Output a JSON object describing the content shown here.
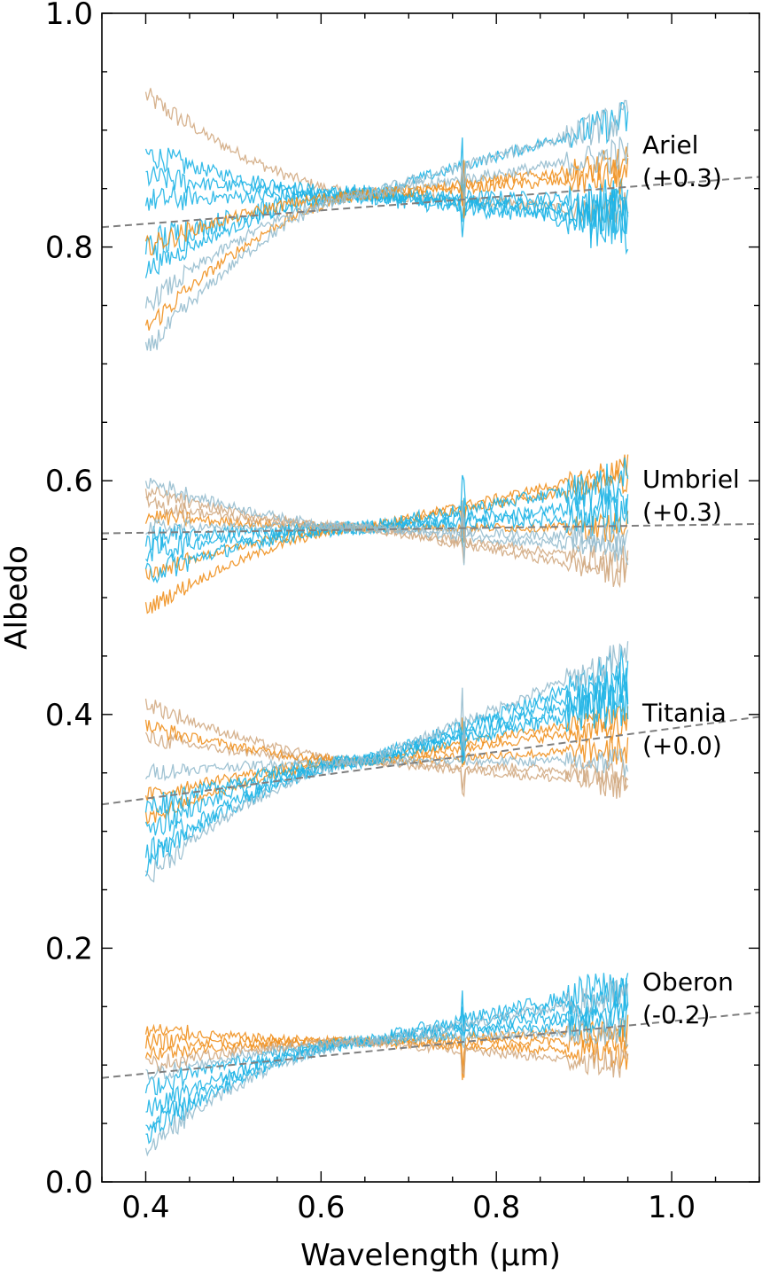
{
  "chart_data": {
    "type": "line",
    "title": "",
    "xlabel": "Wavelength (μm)",
    "ylabel": "Albedo",
    "xlim": [
      0.35,
      1.1
    ],
    "ylim": [
      0.0,
      1.0
    ],
    "x_ticks": [
      0.4,
      0.6,
      0.8,
      1.0
    ],
    "x_tick_labels": [
      "0.4",
      "0.6",
      "0.8",
      "1.0"
    ],
    "y_ticks": [
      0.0,
      0.2,
      0.4,
      0.6,
      0.8,
      1.0
    ],
    "y_tick_labels": [
      "0.0",
      "0.2",
      "0.4",
      "0.6",
      "0.8",
      "1.0"
    ],
    "wavelength_range": [
      0.4,
      0.95
    ],
    "colors": {
      "orange": "#f0901e",
      "cyan": "#1eb4e6",
      "tan": "#d2aa82",
      "gray_blue": "#96bcce",
      "fit_line": "#7f7f7f"
    },
    "groups": [
      {
        "name": "Ariel",
        "offset_label": "(+0.3)",
        "anchor": 0.845,
        "fit_line": {
          "x": [
            0.35,
            1.1
          ],
          "y": [
            0.817,
            0.86
          ]
        },
        "spectra": [
          {
            "color": "tan",
            "start": 0.93,
            "end": 0.83,
            "noise": 0.01
          },
          {
            "color": "cyan",
            "start": 0.88,
            "end": 0.82,
            "noise": 0.012
          },
          {
            "color": "cyan",
            "start": 0.86,
            "end": 0.83,
            "noise": 0.012
          },
          {
            "color": "cyan",
            "start": 0.84,
            "end": 0.84,
            "noise": 0.012
          },
          {
            "color": "cyan",
            "start": 0.8,
            "end": 0.82,
            "noise": 0.018
          },
          {
            "color": "cyan",
            "start": 0.78,
            "end": 0.91,
            "noise": 0.01
          },
          {
            "color": "orange",
            "start": 0.73,
            "end": 0.87,
            "noise": 0.01
          },
          {
            "color": "orange",
            "start": 0.8,
            "end": 0.86,
            "noise": 0.01
          },
          {
            "color": "gray_blue",
            "start": 0.71,
            "end": 0.91,
            "noise": 0.01
          },
          {
            "color": "gray_blue",
            "start": 0.75,
            "end": 0.88,
            "noise": 0.01
          }
        ]
      },
      {
        "name": "Umbriel",
        "offset_label": "(+0.3)",
        "anchor": 0.56,
        "fit_line": {
          "x": [
            0.35,
            1.1
          ],
          "y": [
            0.555,
            0.563
          ]
        },
        "spectra": [
          {
            "color": "orange",
            "start": 0.49,
            "end": 0.61,
            "noise": 0.008
          },
          {
            "color": "orange",
            "start": 0.52,
            "end": 0.6,
            "noise": 0.008
          },
          {
            "color": "orange",
            "start": 0.57,
            "end": 0.56,
            "noise": 0.008
          },
          {
            "color": "cyan",
            "start": 0.52,
            "end": 0.6,
            "noise": 0.012
          },
          {
            "color": "cyan",
            "start": 0.54,
            "end": 0.58,
            "noise": 0.012
          },
          {
            "color": "cyan",
            "start": 0.55,
            "end": 0.57,
            "noise": 0.012
          },
          {
            "color": "tan",
            "start": 0.59,
            "end": 0.53,
            "noise": 0.008
          },
          {
            "color": "tan",
            "start": 0.58,
            "end": 0.52,
            "noise": 0.008
          },
          {
            "color": "gray_blue",
            "start": 0.6,
            "end": 0.54,
            "noise": 0.008
          },
          {
            "color": "gray_blue",
            "start": 0.56,
            "end": 0.55,
            "noise": 0.008
          }
        ]
      },
      {
        "name": "Titania",
        "offset_label": "(+0.0)",
        "anchor": 0.36,
        "fit_line": {
          "x": [
            0.35,
            1.1
          ],
          "y": [
            0.323,
            0.398
          ]
        },
        "spectra": [
          {
            "color": "tan",
            "start": 0.41,
            "end": 0.34,
            "noise": 0.008
          },
          {
            "color": "tan",
            "start": 0.38,
            "end": 0.35,
            "noise": 0.008
          },
          {
            "color": "orange",
            "start": 0.39,
            "end": 0.37,
            "noise": 0.008
          },
          {
            "color": "orange",
            "start": 0.33,
            "end": 0.39,
            "noise": 0.008
          },
          {
            "color": "orange",
            "start": 0.31,
            "end": 0.4,
            "noise": 0.008
          },
          {
            "color": "cyan",
            "start": 0.27,
            "end": 0.43,
            "noise": 0.012
          },
          {
            "color": "cyan",
            "start": 0.28,
            "end": 0.44,
            "noise": 0.012
          },
          {
            "color": "cyan",
            "start": 0.3,
            "end": 0.42,
            "noise": 0.012
          },
          {
            "color": "cyan",
            "start": 0.32,
            "end": 0.41,
            "noise": 0.012
          },
          {
            "color": "gray_blue",
            "start": 0.26,
            "end": 0.45,
            "noise": 0.01
          },
          {
            "color": "gray_blue",
            "start": 0.35,
            "end": 0.36,
            "noise": 0.008
          }
        ]
      },
      {
        "name": "Oberon",
        "offset_label": "(-0.2)",
        "anchor": 0.12,
        "fit_line": {
          "x": [
            0.35,
            1.1
          ],
          "y": [
            0.089,
            0.145
          ]
        },
        "spectra": [
          {
            "color": "orange",
            "start": 0.12,
            "end": 0.13,
            "noise": 0.008
          },
          {
            "color": "orange",
            "start": 0.13,
            "end": 0.11,
            "noise": 0.008
          },
          {
            "color": "orange",
            "start": 0.11,
            "end": 0.12,
            "noise": 0.008
          },
          {
            "color": "cyan",
            "start": 0.04,
            "end": 0.16,
            "noise": 0.01
          },
          {
            "color": "cyan",
            "start": 0.05,
            "end": 0.17,
            "noise": 0.012
          },
          {
            "color": "cyan",
            "start": 0.06,
            "end": 0.15,
            "noise": 0.01
          },
          {
            "color": "cyan",
            "start": 0.08,
            "end": 0.14,
            "noise": 0.01
          },
          {
            "color": "gray_blue",
            "start": 0.03,
            "end": 0.16,
            "noise": 0.01
          },
          {
            "color": "gray_blue",
            "start": 0.09,
            "end": 0.13,
            "noise": 0.008
          },
          {
            "color": "tan",
            "start": 0.1,
            "end": 0.1,
            "noise": 0.008
          }
        ]
      }
    ]
  }
}
